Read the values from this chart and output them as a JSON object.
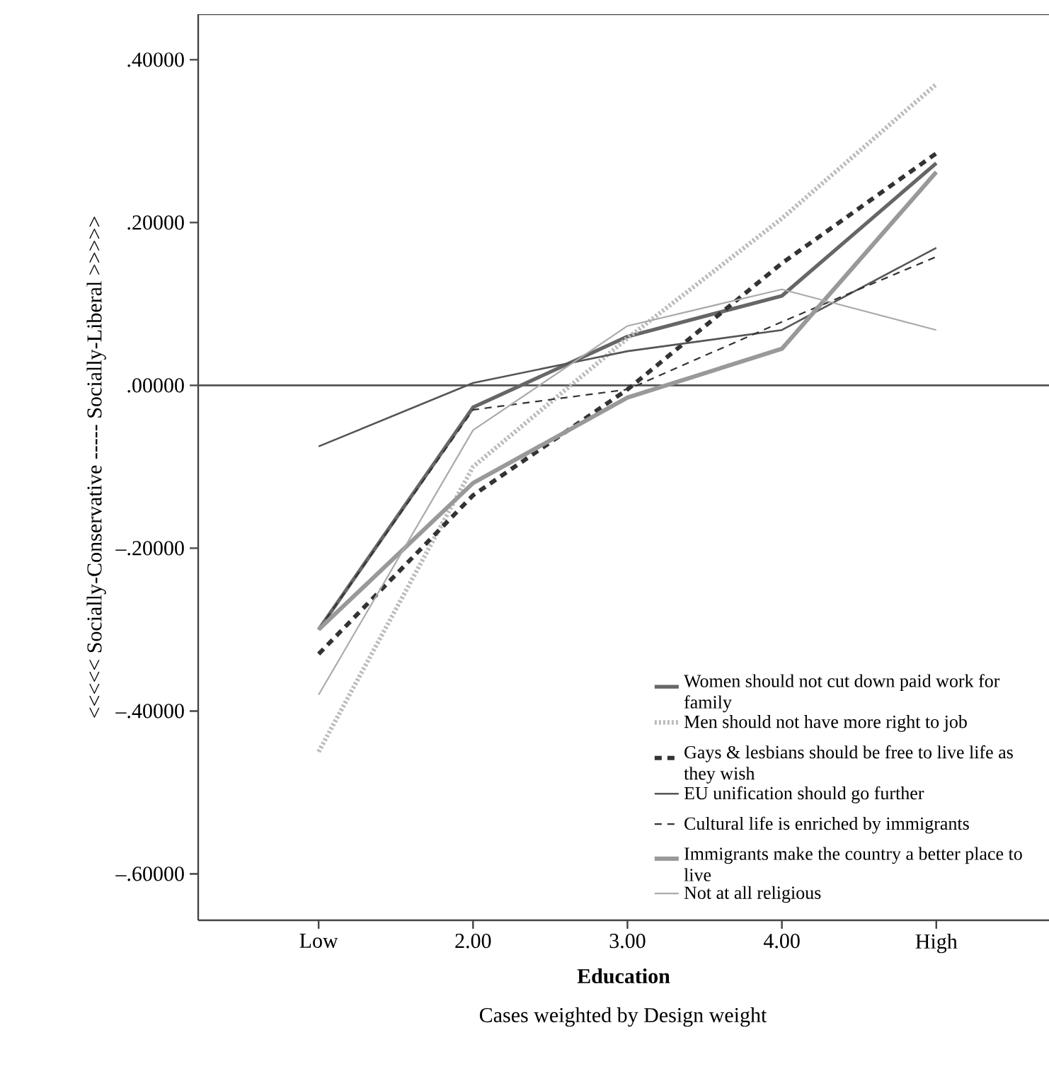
{
  "chart_data": {
    "type": "line",
    "xlabel": "Education",
    "ylabel": "<<<<< Socially-Conservative ----- Socially-Liberal >>>>>",
    "annotations": [
      "Cases weighted by Design weight"
    ],
    "categories": [
      "Low",
      "2.00",
      "3.00",
      "4.00",
      "High"
    ],
    "ylim": [
      -0.657,
      0.456
    ],
    "yticks": [
      {
        "value": 0.4,
        "label": ".40000"
      },
      {
        "value": 0.2,
        "label": ".20000"
      },
      {
        "value": 0,
        "label": ".00000"
      },
      {
        "value": -0.2,
        "label": "–.20000"
      },
      {
        "value": -0.4,
        "label": "–.40000"
      },
      {
        "value": -0.6,
        "label": "–.60000"
      }
    ],
    "ref_lines": [
      {
        "axis": "y",
        "value": 0,
        "color": "#555555"
      }
    ],
    "legend": "bottom right",
    "series": [
      {
        "name": "Women should not cut down paid work for family",
        "color": "#666666",
        "line_style": "solid",
        "values": [
          -0.3,
          -0.027,
          0.06,
          0.11,
          0.273
        ]
      },
      {
        "name": "Men should not have more right to job",
        "color": "#bbbbbb",
        "line_style": "dotted",
        "values": [
          -0.45,
          -0.1,
          0.058,
          0.205,
          0.37
        ]
      },
      {
        "name": "Gays & lesbians should be free to live life as they wish",
        "color": "#333333",
        "line_style": "dashed",
        "values": [
          -0.33,
          -0.135,
          -0.005,
          0.15,
          0.285
        ]
      },
      {
        "name": "EU unification should go further",
        "color": "#555555",
        "line_style": "solid",
        "values": [
          -0.075,
          0.003,
          0.042,
          0.068,
          0.169
        ]
      },
      {
        "name": "Cultural life is enriched by immigrants",
        "color": "#333333",
        "line_style": "dashed",
        "values": [
          -0.3,
          -0.03,
          -0.005,
          0.078,
          0.158
        ]
      },
      {
        "name": "Immigrants make the country a better place to live",
        "color": "#999999",
        "line_style": "solid",
        "values": [
          -0.3,
          -0.12,
          -0.015,
          0.045,
          0.262
        ]
      },
      {
        "name": "Not at all religious",
        "color": "#aaaaaa",
        "line_style": "solid",
        "values": [
          -0.38,
          -0.055,
          0.073,
          0.118,
          0.068
        ]
      }
    ]
  }
}
